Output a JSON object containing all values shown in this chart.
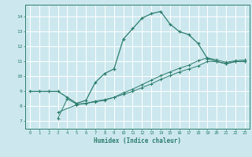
{
  "xlabel": "Humidex (Indice chaleur)",
  "xlim": [
    -0.5,
    23.5
  ],
  "ylim": [
    6.5,
    14.8
  ],
  "yticks": [
    7,
    8,
    9,
    10,
    11,
    12,
    13,
    14
  ],
  "xticks": [
    0,
    1,
    2,
    3,
    4,
    5,
    6,
    7,
    8,
    9,
    10,
    11,
    12,
    13,
    14,
    15,
    16,
    17,
    18,
    19,
    20,
    21,
    22,
    23
  ],
  "bg_color": "#cce8ee",
  "line_color": "#2e7d6e",
  "grid_color": "#b0d8e0",
  "line1_x": [
    0,
    1,
    2,
    3,
    4,
    5,
    6,
    7,
    8,
    9,
    10,
    11,
    12,
    13,
    14,
    15,
    16,
    17,
    18,
    19,
    20,
    21,
    22,
    23
  ],
  "line1_y": [
    9.0,
    9.0,
    9.0,
    9.0,
    8.6,
    8.2,
    8.4,
    9.6,
    10.2,
    10.5,
    12.5,
    13.2,
    13.9,
    14.2,
    14.35,
    13.5,
    13.0,
    12.8,
    12.2,
    11.2,
    11.0,
    10.85,
    11.0,
    11.0
  ],
  "line2_x": [
    3,
    4,
    5,
    6,
    7,
    8,
    9,
    10,
    11,
    12,
    13,
    14,
    15,
    16,
    17,
    18,
    19,
    20,
    21,
    22,
    23
  ],
  "line2_y": [
    7.2,
    8.5,
    8.15,
    8.2,
    8.35,
    8.45,
    8.6,
    8.8,
    9.0,
    9.25,
    9.5,
    9.8,
    10.05,
    10.3,
    10.5,
    10.7,
    11.0,
    11.0,
    10.85,
    11.0,
    11.0
  ],
  "line3_x": [
    3,
    5,
    6,
    7,
    8,
    9,
    10,
    11,
    12,
    13,
    14,
    15,
    16,
    17,
    18,
    19,
    20,
    21,
    22,
    23
  ],
  "line3_y": [
    7.6,
    8.1,
    8.2,
    8.3,
    8.4,
    8.6,
    8.9,
    9.15,
    9.45,
    9.75,
    10.05,
    10.3,
    10.55,
    10.75,
    11.05,
    11.25,
    11.1,
    10.95,
    11.05,
    11.1
  ]
}
